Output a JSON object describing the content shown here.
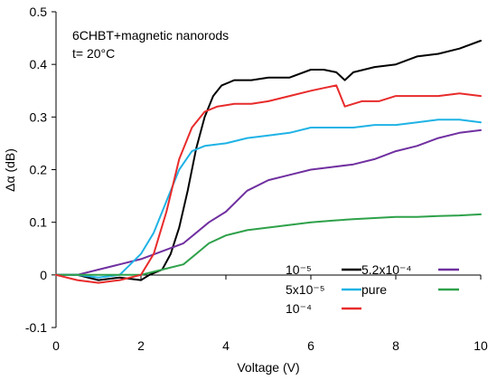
{
  "chart_data": {
    "type": "line",
    "title": "",
    "annotations": [
      "6CHBT+magnetic nanorods",
      "t= 20°C"
    ],
    "xlabel": "Voltage (V)",
    "ylabel": "Δα (dB)",
    "xlim": [
      0,
      10
    ],
    "ylim": [
      -0.1,
      0.5
    ],
    "x_ticks": [
      "0",
      "2",
      "4",
      "6",
      "8",
      "10"
    ],
    "y_ticks": [
      "-0.1",
      "0",
      "0.1",
      "0.2",
      "0.3",
      "0.4",
      "0.5"
    ],
    "grid": false,
    "legend_placement": "bottom-right",
    "series": [
      {
        "name": "10⁻⁵",
        "color": "#000000",
        "x": [
          0,
          0.5,
          1.0,
          1.5,
          2.0,
          2.2,
          2.5,
          2.7,
          2.9,
          3.1,
          3.3,
          3.5,
          3.7,
          3.9,
          4.2,
          4.6,
          5.0,
          5.5,
          6.0,
          6.3,
          6.6,
          6.8,
          7.0,
          7.5,
          8.0,
          8.5,
          9.0,
          9.5,
          10.0
        ],
        "values": [
          0,
          0,
          -0.01,
          -0.005,
          -0.01,
          0.0,
          0.01,
          0.04,
          0.09,
          0.16,
          0.24,
          0.3,
          0.34,
          0.36,
          0.37,
          0.37,
          0.375,
          0.375,
          0.39,
          0.39,
          0.385,
          0.37,
          0.385,
          0.395,
          0.4,
          0.415,
          0.42,
          0.43,
          0.445
        ]
      },
      {
        "name": "5.2x10⁻⁴",
        "color": "#7030a0",
        "x": [
          0,
          0.5,
          1.0,
          1.5,
          2.0,
          2.5,
          3.0,
          3.3,
          3.6,
          4.0,
          4.5,
          5.0,
          5.5,
          6.0,
          6.5,
          7.0,
          7.5,
          8.0,
          8.5,
          9.0,
          9.5,
          10.0
        ],
        "values": [
          0,
          0,
          0.01,
          0.02,
          0.03,
          0.045,
          0.06,
          0.08,
          0.1,
          0.12,
          0.16,
          0.18,
          0.19,
          0.2,
          0.205,
          0.21,
          0.22,
          0.235,
          0.245,
          0.26,
          0.27,
          0.275
        ]
      },
      {
        "name": "5x10⁻⁵",
        "color": "#1fb3e5",
        "x": [
          0,
          0.5,
          1.0,
          1.5,
          2.0,
          2.3,
          2.6,
          2.9,
          3.2,
          3.5,
          4.0,
          4.5,
          5.0,
          5.5,
          6.0,
          6.5,
          7.0,
          7.5,
          8.0,
          8.5,
          9.0,
          9.5,
          10.0
        ],
        "values": [
          0,
          0,
          -0.005,
          0.0,
          0.04,
          0.08,
          0.14,
          0.2,
          0.235,
          0.245,
          0.25,
          0.26,
          0.265,
          0.27,
          0.28,
          0.28,
          0.28,
          0.285,
          0.285,
          0.29,
          0.295,
          0.295,
          0.29
        ]
      },
      {
        "name": "pure",
        "color": "#2ea14a",
        "x": [
          0,
          1.0,
          2.0,
          2.5,
          3.0,
          3.3,
          3.6,
          4.0,
          4.5,
          5.0,
          5.5,
          6.0,
          6.5,
          7.0,
          7.5,
          8.0,
          8.5,
          9.0,
          9.5,
          10.0
        ],
        "values": [
          0,
          0,
          0.0,
          0.01,
          0.02,
          0.04,
          0.06,
          0.075,
          0.085,
          0.09,
          0.095,
          0.1,
          0.103,
          0.106,
          0.108,
          0.11,
          0.11,
          0.112,
          0.113,
          0.115
        ]
      },
      {
        "name": "10⁻⁴",
        "color": "#e82b2b",
        "x": [
          0,
          0.5,
          1.0,
          1.5,
          2.0,
          2.3,
          2.6,
          2.9,
          3.2,
          3.5,
          3.8,
          4.2,
          4.6,
          5.0,
          5.5,
          6.0,
          6.3,
          6.6,
          6.8,
          7.2,
          7.6,
          8.0,
          8.5,
          9.0,
          9.5,
          10.0
        ],
        "values": [
          0,
          -0.01,
          -0.015,
          -0.01,
          0.0,
          0.04,
          0.12,
          0.22,
          0.28,
          0.31,
          0.32,
          0.325,
          0.325,
          0.33,
          0.34,
          0.35,
          0.355,
          0.36,
          0.32,
          0.33,
          0.33,
          0.34,
          0.34,
          0.34,
          0.345,
          0.34
        ]
      }
    ],
    "legend": [
      {
        "label": "10⁻⁵",
        "color": "#000000",
        "col": 0,
        "row": 0
      },
      {
        "label": "5x10⁻⁵",
        "color": "#1fb3e5",
        "col": 0,
        "row": 1
      },
      {
        "label": "10⁻⁴",
        "color": "#e82b2b",
        "col": 0,
        "row": 2
      },
      {
        "label": "5.2x10⁻⁴",
        "color": "#7030a0",
        "col": 1,
        "row": 0
      },
      {
        "label": "pure",
        "color": "#2ea14a",
        "col": 1,
        "row": 1
      }
    ]
  }
}
